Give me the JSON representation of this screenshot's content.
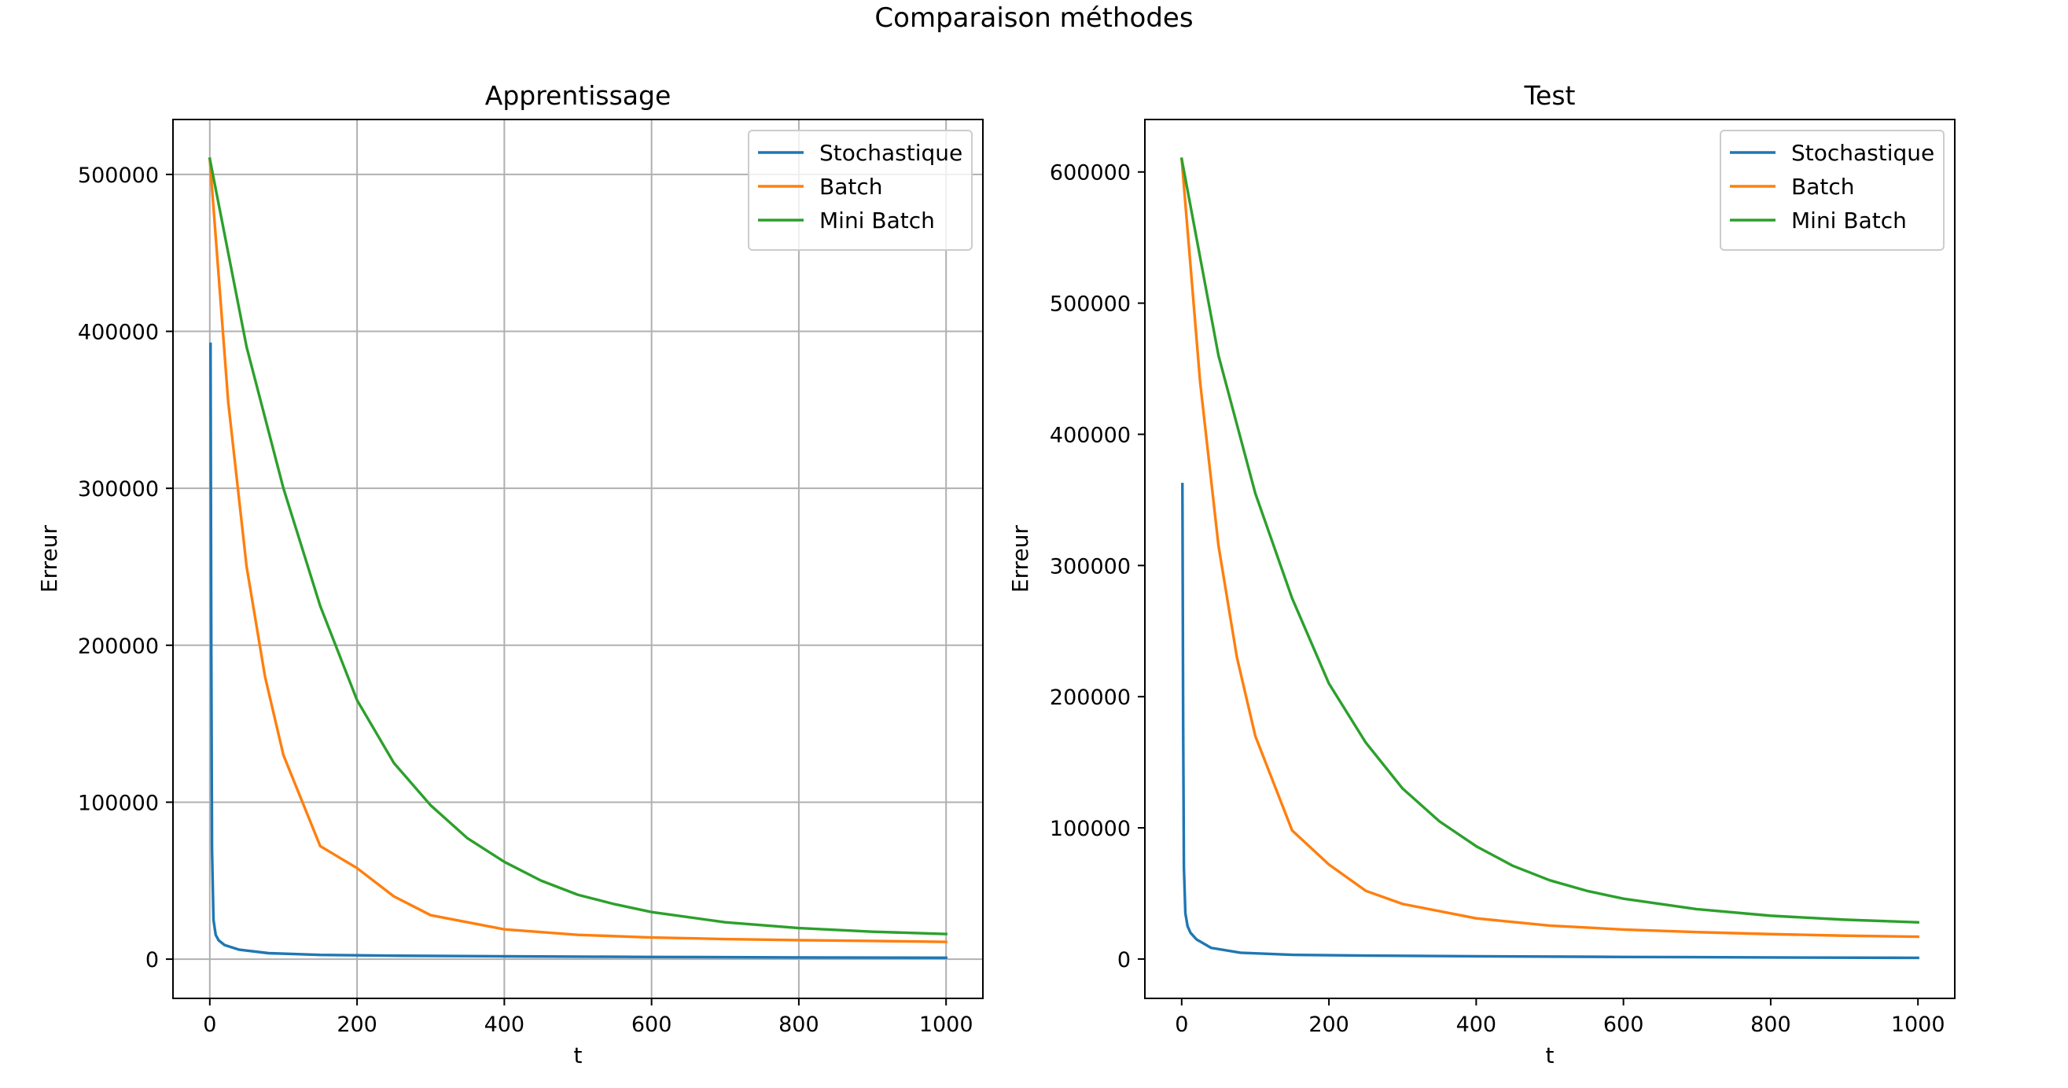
{
  "figure": {
    "suptitle": "Comparaison méthodes"
  },
  "colors": {
    "Stochastique": "#1f77b4",
    "Batch": "#ff7f0e",
    "Mini Batch": "#2ca02c"
  },
  "chart_data": [
    {
      "type": "line",
      "title": "Apprentissage",
      "xlabel": "t",
      "ylabel": "Erreur",
      "xlim": [
        -50,
        1050
      ],
      "ylim": [
        -25000,
        535000
      ],
      "xticks": [
        0,
        200,
        400,
        600,
        800,
        1000
      ],
      "yticks": [
        0,
        100000,
        200000,
        300000,
        400000,
        500000
      ],
      "grid": true,
      "legend_position": "upper right",
      "series": [
        {
          "name": "Stochastique",
          "color": "#1f77b4",
          "x": [
            1,
            2,
            3,
            5,
            8,
            12,
            20,
            40,
            80,
            150,
            250,
            400,
            600,
            800,
            1000
          ],
          "y": [
            392000,
            200000,
            70000,
            25000,
            15500,
            12000,
            9000,
            6000,
            3800,
            2700,
            2200,
            1800,
            1400,
            1100,
            900
          ]
        },
        {
          "name": "Batch",
          "color": "#ff7f0e",
          "x": [
            0,
            25,
            50,
            75,
            100,
            150,
            200,
            250,
            300,
            400,
            500,
            600,
            700,
            800,
            900,
            1000
          ],
          "y": [
            510000,
            355000,
            250000,
            180000,
            130000,
            72000,
            58000,
            40000,
            28000,
            19000,
            15500,
            13800,
            12800,
            12100,
            11600,
            11000
          ]
        },
        {
          "name": "Mini Batch",
          "color": "#2ca02c",
          "x": [
            0,
            50,
            100,
            150,
            200,
            250,
            300,
            350,
            400,
            450,
            500,
            550,
            600,
            700,
            800,
            900,
            1000
          ],
          "y": [
            510000,
            390000,
            300000,
            225000,
            165000,
            125000,
            98000,
            77000,
            62000,
            50000,
            41000,
            35000,
            30000,
            23500,
            19800,
            17500,
            16000
          ]
        }
      ]
    },
    {
      "type": "line",
      "title": "Test",
      "xlabel": "t",
      "ylabel": "Erreur",
      "xlim": [
        -50,
        1050
      ],
      "ylim": [
        -30000,
        640000
      ],
      "xticks": [
        0,
        200,
        400,
        600,
        800,
        1000
      ],
      "yticks": [
        0,
        100000,
        200000,
        300000,
        400000,
        500000,
        600000
      ],
      "grid": false,
      "legend_position": "upper right",
      "series": [
        {
          "name": "Stochastique",
          "color": "#1f77b4",
          "x": [
            1,
            2,
            3,
            5,
            8,
            12,
            20,
            40,
            80,
            150,
            250,
            400,
            600,
            800,
            1000
          ],
          "y": [
            362000,
            180000,
            70000,
            35000,
            25000,
            20000,
            15000,
            8500,
            4800,
            3200,
            2600,
            2100,
            1600,
            1200,
            900
          ]
        },
        {
          "name": "Batch",
          "color": "#ff7f0e",
          "x": [
            0,
            25,
            50,
            75,
            100,
            150,
            200,
            250,
            300,
            400,
            500,
            600,
            700,
            800,
            900,
            1000
          ],
          "y": [
            610000,
            440000,
            315000,
            230000,
            170000,
            98000,
            72000,
            52000,
            42000,
            31000,
            25500,
            22500,
            20500,
            19000,
            17800,
            17000
          ]
        },
        {
          "name": "Mini Batch",
          "color": "#2ca02c",
          "x": [
            0,
            50,
            100,
            150,
            200,
            250,
            300,
            350,
            400,
            450,
            500,
            550,
            600,
            700,
            800,
            900,
            1000
          ],
          "y": [
            610000,
            460000,
            355000,
            275000,
            210000,
            165000,
            130000,
            105000,
            86000,
            71000,
            60000,
            52000,
            46000,
            38000,
            33000,
            30000,
            28000
          ]
        }
      ]
    }
  ]
}
